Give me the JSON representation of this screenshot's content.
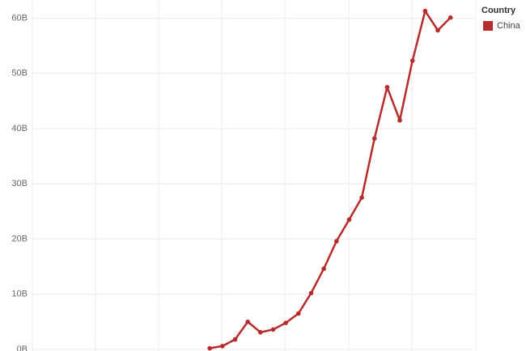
{
  "chart_data": {
    "type": "line",
    "categories": [
      null,
      null,
      null,
      null,
      null,
      null,
      null,
      null,
      null,
      null,
      null,
      null,
      null,
      null,
      null,
      null,
      null,
      null,
      null,
      null,
      null,
      null,
      null,
      null,
      null,
      null,
      null,
      null,
      null,
      null,
      null,
      null,
      null,
      null,
      null
    ],
    "series": [
      {
        "name": "China",
        "color": "#b82b2b",
        "values": [
          null,
          null,
          null,
          null,
          null,
          null,
          null,
          null,
          null,
          null,
          null,
          null,
          null,
          null,
          200000000,
          600000000,
          1800000000,
          5000000000,
          3100000000,
          3600000000,
          4800000000,
          6500000000,
          10200000000,
          14600000000,
          19600000000,
          23500000000,
          27500000000,
          38200000000,
          47500000000,
          41500000000,
          52300000000,
          61300000000,
          57800000000,
          60100000000,
          null
        ]
      }
    ],
    "legend_title": "Country",
    "ylim": [
      0,
      63000000000
    ],
    "yticks": [
      {
        "value": 0,
        "label": "0B"
      },
      {
        "value": 10000000000,
        "label": "10B"
      },
      {
        "value": 20000000000,
        "label": "20B"
      },
      {
        "value": 30000000000,
        "label": "30B"
      },
      {
        "value": 40000000000,
        "label": "40B"
      },
      {
        "value": 50000000000,
        "label": "50B"
      },
      {
        "value": 60000000000,
        "label": "60B"
      }
    ],
    "grid": true
  }
}
